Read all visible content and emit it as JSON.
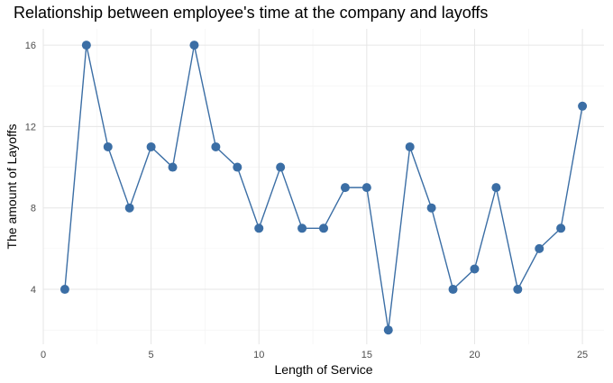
{
  "chart_data": {
    "type": "line",
    "title": "Relationship between employee's time at the company and layoffs",
    "xlabel": "Length of Service",
    "ylabel": "The amount of Layoffs",
    "xlim": [
      0,
      26
    ],
    "ylim": [
      1.3,
      16.8
    ],
    "xticks": [
      0,
      5,
      10,
      15,
      20,
      25
    ],
    "yticks": [
      4,
      8,
      12,
      16
    ],
    "grid": true,
    "series": [
      {
        "color": "#3b6ea5",
        "markers": true,
        "x": [
          1,
          2,
          3,
          4,
          5,
          6,
          7,
          8,
          9,
          10,
          11,
          12,
          13,
          14,
          15,
          16,
          17,
          18,
          19,
          20,
          21,
          22,
          23,
          24,
          25
        ],
        "y": [
          4,
          16,
          11,
          8,
          11,
          10,
          16,
          11,
          10,
          7,
          10,
          7,
          7,
          9,
          9,
          2,
          11,
          8,
          4,
          5,
          9,
          4,
          6,
          7,
          13
        ]
      }
    ]
  }
}
